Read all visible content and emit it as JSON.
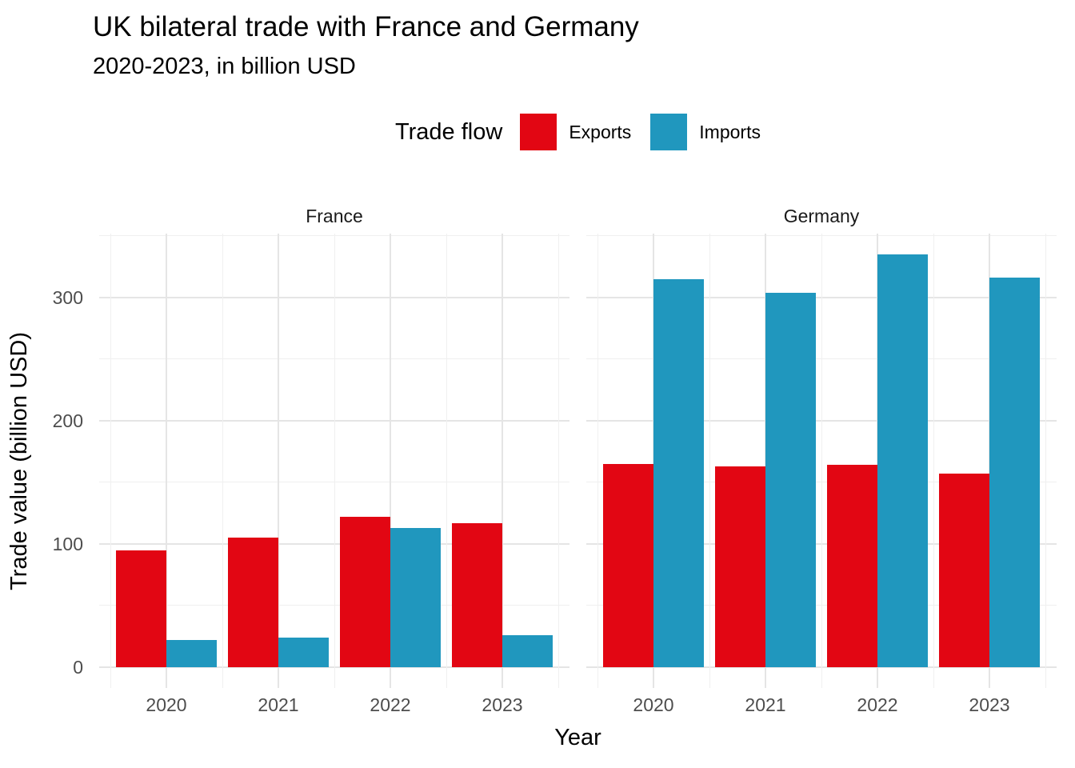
{
  "chart_data": {
    "type": "bar",
    "title": "UK bilateral trade with France and Germany",
    "subtitle": "2020-2023, in billion USD",
    "legend_title": "Trade flow",
    "legend_position": "top",
    "xlabel": "Year",
    "ylabel": "Trade value (billion USD)",
    "categories": [
      "2020",
      "2021",
      "2022",
      "2023"
    ],
    "legend_entries": [
      {
        "label": "Exports",
        "color": "#E20613"
      },
      {
        "label": "Imports",
        "color": "#2097BE"
      }
    ],
    "facets": [
      {
        "name": "France",
        "series": [
          {
            "name": "Exports",
            "values": [
              95,
              105,
              122,
              117
            ]
          },
          {
            "name": "Imports",
            "values": [
              22,
              24,
              113,
              26
            ]
          }
        ]
      },
      {
        "name": "Germany",
        "series": [
          {
            "name": "Exports",
            "values": [
              165,
              163,
              164,
              157
            ]
          },
          {
            "name": "Imports",
            "values": [
              315,
              304,
              335,
              316
            ]
          }
        ]
      }
    ],
    "yticks": [
      0,
      100,
      200,
      300
    ],
    "yticks_minor": [
      50,
      150,
      250,
      350
    ],
    "ylim": [
      -16.8,
      351.8
    ],
    "grid": true,
    "bar_width_fraction": 0.9,
    "colors": {
      "grid_major": "#E5E5E5",
      "grid_minor": "#F0F0F0",
      "tick_label": "#4D4D4D",
      "strip_text": "#1A1A1A",
      "text": "#000000",
      "background": "#FFFFFF"
    }
  }
}
